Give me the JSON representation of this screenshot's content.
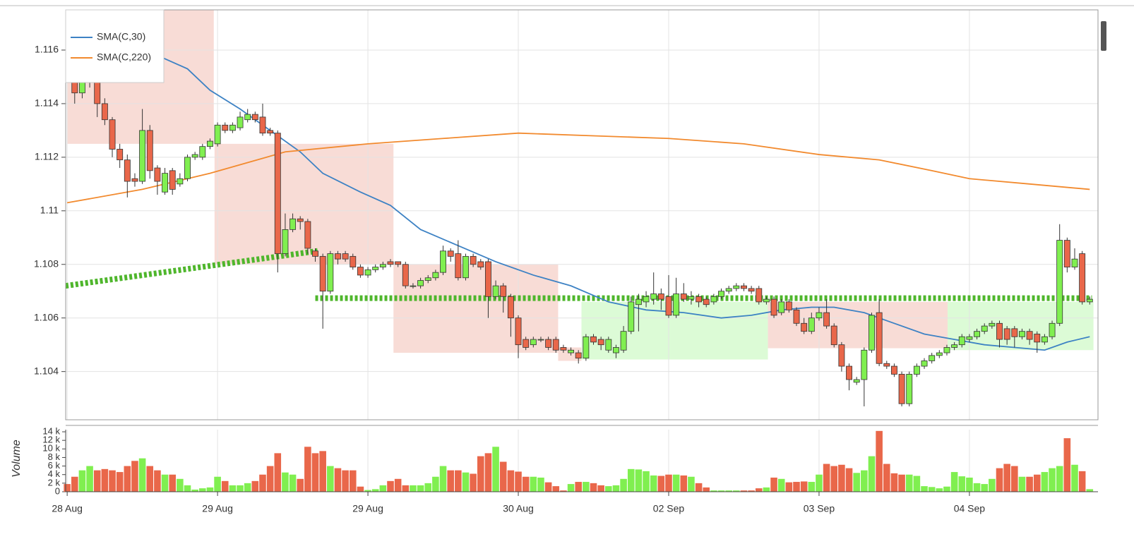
{
  "chart_data": [
    {
      "type": "candlestick",
      "xlim": [
        -0.2,
        137.1
      ],
      "ylim": [
        1.1022,
        1.1175
      ],
      "yticks": [
        1.104,
        1.106,
        1.108,
        1.11,
        1.112,
        1.114,
        1.116
      ],
      "grid": true,
      "up_color": "#80ef50",
      "down_color": "#e9674a",
      "legend": "upper left",
      "open": [
        1.1158,
        1.115,
        1.1144,
        1.1148,
        1.1152,
        1.114,
        1.1134,
        1.1123,
        1.1119,
        1.1112,
        1.1111,
        1.113,
        1.1116,
        1.1107,
        1.1115,
        1.111,
        1.1112,
        1.112,
        1.112,
        1.1124,
        1.1125,
        1.1132,
        1.113,
        1.1131,
        1.1134,
        1.1136,
        1.1135,
        1.113,
        1.1129,
        1.1084,
        1.1093,
        1.1097,
        1.1096,
        1.1085,
        1.1083,
        1.107,
        1.1084,
        1.1084,
        1.1083,
        1.1079,
        1.1076,
        1.1078,
        1.1079,
        1.1081,
        1.1081,
        1.108,
        1.1072,
        1.1072,
        1.1074,
        1.1075,
        1.1077,
        1.1085,
        1.1084,
        1.1075,
        1.1083,
        1.1081,
        1.1081,
        1.1068,
        1.1072,
        1.1068,
        1.106,
        1.1052,
        1.105,
        1.1052,
        1.1052,
        1.1052,
        1.1049,
        1.1047,
        1.1047,
        1.1045,
        1.1053,
        1.1052,
        1.1048,
        1.1047,
        1.1048,
        1.1055,
        1.1065,
        1.1066,
        1.1067,
        1.1069,
        1.1068,
        1.1061,
        1.1069,
        1.1067,
        1.1068,
        1.1067,
        1.1066,
        1.1068,
        1.107,
        1.1071,
        1.1072,
        1.1071,
        1.1071,
        1.1066,
        1.1067,
        1.1062,
        1.1066,
        1.1063,
        1.1058,
        1.1055,
        1.106,
        1.1062,
        1.1057,
        1.105,
        1.1042,
        1.1036,
        1.1037,
        1.1048,
        1.1062,
        1.1043,
        1.1042,
        1.1039,
        1.1028,
        1.1039,
        1.1042,
        1.1044,
        1.1046,
        1.1047,
        1.1049,
        1.105,
        1.1052,
        1.1053,
        1.1055,
        1.1057,
        1.1058,
        1.1056,
        1.1056,
        1.1053,
        1.1055,
        1.1054,
        1.1051,
        1.1053,
        1.1058,
        1.1089,
        1.1079,
        1.1084,
        1.1066
      ],
      "high": [
        1.1162,
        1.1152,
        1.115,
        1.1158,
        1.1154,
        1.1142,
        1.1135,
        1.1125,
        1.1121,
        1.1114,
        1.1138,
        1.1132,
        1.1117,
        1.1116,
        1.1116,
        1.1114,
        1.1121,
        1.1122,
        1.1125,
        1.1127,
        1.1133,
        1.1133,
        1.1133,
        1.1137,
        1.1138,
        1.1137,
        1.114,
        1.1131,
        1.113,
        1.1099,
        1.1099,
        1.1098,
        1.1097,
        1.1086,
        1.1084,
        1.1085,
        1.1085,
        1.1085,
        1.1084,
        1.108,
        1.1079,
        1.108,
        1.1081,
        1.1082,
        1.1081,
        1.1081,
        1.1073,
        1.1075,
        1.1076,
        1.1078,
        1.1087,
        1.1086,
        1.1089,
        1.1084,
        1.1084,
        1.1082,
        1.1082,
        1.1074,
        1.1073,
        1.1069,
        1.1061,
        1.1053,
        1.1053,
        1.1053,
        1.1053,
        1.1053,
        1.105,
        1.1049,
        1.1048,
        1.1054,
        1.1054,
        1.1053,
        1.1053,
        1.105,
        1.1057,
        1.1068,
        1.1069,
        1.107,
        1.1077,
        1.1071,
        1.1076,
        1.1075,
        1.1073,
        1.107,
        1.1069,
        1.1068,
        1.1069,
        1.1071,
        1.1072,
        1.1073,
        1.1073,
        1.1072,
        1.1072,
        1.1068,
        1.1068,
        1.1067,
        1.1067,
        1.1064,
        1.106,
        1.1062,
        1.1064,
        1.1067,
        1.1058,
        1.1051,
        1.1043,
        1.1038,
        1.1049,
        1.1062,
        1.1067,
        1.1044,
        1.1043,
        1.104,
        1.104,
        1.1043,
        1.1045,
        1.1047,
        1.1048,
        1.105,
        1.1051,
        1.1054,
        1.1054,
        1.1056,
        1.1058,
        1.1059,
        1.1059,
        1.1057,
        1.1057,
        1.1056,
        1.1056,
        1.1055,
        1.1054,
        1.1059,
        1.1095,
        1.109,
        1.1086,
        1.1085,
        1.1068
      ],
      "low": [
        1.1148,
        1.114,
        1.1142,
        1.1146,
        1.1135,
        1.1132,
        1.112,
        1.1116,
        1.1105,
        1.1109,
        1.111,
        1.1112,
        1.1106,
        1.1106,
        1.1106,
        1.1109,
        1.1111,
        1.1119,
        1.1119,
        1.1123,
        1.1124,
        1.1129,
        1.1129,
        1.113,
        1.1133,
        1.1133,
        1.1128,
        1.1128,
        1.1077,
        1.1083,
        1.1092,
        1.1093,
        1.1084,
        1.1081,
        1.1056,
        1.1069,
        1.108,
        1.1081,
        1.1078,
        1.1075,
        1.1075,
        1.1077,
        1.1078,
        1.1079,
        1.1079,
        1.1071,
        1.1071,
        1.1071,
        1.1073,
        1.1074,
        1.1076,
        1.1081,
        1.1074,
        1.1074,
        1.1079,
        1.1078,
        1.106,
        1.1067,
        1.1062,
        1.1053,
        1.1045,
        1.1048,
        1.1049,
        1.1051,
        1.1048,
        1.1047,
        1.1047,
        1.1046,
        1.1043,
        1.1044,
        1.105,
        1.1048,
        1.1047,
        1.1045,
        1.1047,
        1.1054,
        1.1055,
        1.1064,
        1.1065,
        1.1063,
        1.106,
        1.106,
        1.1066,
        1.1065,
        1.1064,
        1.1064,
        1.1065,
        1.1067,
        1.1069,
        1.107,
        1.107,
        1.1069,
        1.1065,
        1.1065,
        1.106,
        1.1061,
        1.1062,
        1.1057,
        1.1054,
        1.1054,
        1.1059,
        1.1056,
        1.1049,
        1.104,
        1.1033,
        1.1035,
        1.1027,
        1.1047,
        1.1042,
        1.1041,
        1.1038,
        1.1027,
        1.1027,
        1.1038,
        1.1041,
        1.1043,
        1.1045,
        1.1046,
        1.1048,
        1.1049,
        1.1051,
        1.1052,
        1.1054,
        1.1056,
        1.1049,
        1.105,
        1.1049,
        1.1052,
        1.105,
        1.1047,
        1.105,
        1.1052,
        1.1057,
        1.1077,
        1.1078,
        1.1065,
        1.1065
      ],
      "close": [
        1.1152,
        1.1144,
        1.1148,
        1.1155,
        1.114,
        1.1134,
        1.1123,
        1.1119,
        1.1111,
        1.1111,
        1.113,
        1.1115,
        1.1111,
        1.1114,
        1.1108,
        1.1112,
        1.112,
        1.1121,
        1.1124,
        1.1126,
        1.1132,
        1.113,
        1.1132,
        1.1135,
        1.1136,
        1.1134,
        1.1129,
        1.1129,
        1.1084,
        1.1093,
        1.1097,
        1.1096,
        1.1086,
        1.1083,
        1.107,
        1.1084,
        1.1082,
        1.1082,
        1.1079,
        1.1076,
        1.1078,
        1.1079,
        1.108,
        1.108,
        1.108,
        1.1072,
        1.1072,
        1.1074,
        1.1075,
        1.1077,
        1.1085,
        1.1083,
        1.1075,
        1.1083,
        1.108,
        1.1079,
        1.1068,
        1.1072,
        1.1068,
        1.106,
        1.105,
        1.1049,
        1.1052,
        1.1052,
        1.1049,
        1.1048,
        1.1048,
        1.1048,
        1.1045,
        1.1053,
        1.1051,
        1.105,
        1.1052,
        1.1049,
        1.1055,
        1.1066,
        1.1067,
        1.1068,
        1.1069,
        1.1067,
        1.1061,
        1.1069,
        1.1067,
        1.1068,
        1.1066,
        1.1065,
        1.1068,
        1.107,
        1.1071,
        1.1072,
        1.1071,
        1.107,
        1.1066,
        1.1067,
        1.1061,
        1.1066,
        1.1063,
        1.1058,
        1.1055,
        1.106,
        1.1062,
        1.1057,
        1.105,
        1.1042,
        1.1037,
        1.1037,
        1.1048,
        1.1061,
        1.1043,
        1.1042,
        1.1039,
        1.1028,
        1.1039,
        1.1042,
        1.1044,
        1.1046,
        1.1047,
        1.1049,
        1.105,
        1.1053,
        1.1053,
        1.1055,
        1.1057,
        1.1058,
        1.1052,
        1.1052,
        1.1053,
        1.1055,
        1.1052,
        1.1051,
        1.1053,
        1.1058,
        1.1089,
        1.1079,
        1.1082,
        1.1066,
        1.1067
      ],
      "series": [
        {
          "name": "SMA(C,30)",
          "color": "#3d82c4",
          "x": [
            12,
            16,
            19,
            23,
            27,
            31,
            34,
            39,
            43,
            47,
            52,
            57,
            62,
            67,
            72,
            77,
            82,
            87,
            91,
            95,
            99,
            102,
            106,
            110,
            114,
            118,
            122,
            126,
            130,
            133,
            136
          ],
          "values": [
            1.1158,
            1.1153,
            1.1145,
            1.1138,
            1.113,
            1.1122,
            1.1114,
            1.1107,
            1.1102,
            1.1093,
            1.1087,
            1.1081,
            1.1076,
            1.1072,
            1.1066,
            1.1063,
            1.1062,
            1.106,
            1.1061,
            1.1063,
            1.1064,
            1.1064,
            1.1062,
            1.1058,
            1.1054,
            1.1052,
            1.105,
            1.1049,
            1.1048,
            1.1051,
            1.1053
          ]
        },
        {
          "name": "SMA(C,220)",
          "color": "#f28a2e",
          "x": [
            0,
            10,
            19,
            29,
            40,
            50,
            60,
            70,
            80,
            90,
            100,
            108,
            115,
            120,
            128,
            136
          ],
          "values": [
            1.1103,
            1.1108,
            1.1114,
            1.1122,
            1.1125,
            1.1127,
            1.1129,
            1.1128,
            1.1127,
            1.1125,
            1.1121,
            1.1119,
            1.1115,
            1.1112,
            1.111,
            1.1108
          ]
        }
      ],
      "zones": [
        {
          "x": [
            0,
            19.5
          ],
          "y": [
            1.1125,
            1.1175
          ],
          "color": "#f8dcd6"
        },
        {
          "x": [
            19.6,
            43.4
          ],
          "y": [
            1.108,
            1.1125
          ],
          "color": "#f8dcd6"
        },
        {
          "x": [
            43.4,
            65.3
          ],
          "y": [
            1.1047,
            1.108
          ],
          "color": "#f8dcd6"
        },
        {
          "x": [
            65.3,
            68.4
          ],
          "y": [
            1.1044,
            1.1049
          ],
          "color": "#f8dcd6"
        },
        {
          "x": [
            68.4,
            93.2
          ],
          "y": [
            1.10445,
            1.1066
          ],
          "color": "#dcfbd6"
        },
        {
          "x": [
            93.2,
            117.1
          ],
          "y": [
            1.10487,
            1.1066
          ],
          "color": "#f8dcd6"
        },
        {
          "x": [
            117.1,
            136.5
          ],
          "y": [
            1.1048,
            1.1066
          ],
          "color": "#dcfbd6"
        }
      ],
      "trend_color": "#4fb62c",
      "trend_lines": [
        {
          "x": [
            -0.2,
            33.3
          ],
          "values": [
            1.1072,
            1.1085
          ]
        },
        {
          "x": [
            33,
            136.3
          ],
          "values": [
            1.10674,
            1.10674
          ]
        }
      ]
    },
    {
      "type": "bar",
      "y_label": "Volume",
      "xlim": [
        -0.2,
        137.1
      ],
      "ylim": [
        0,
        14500
      ],
      "yticks": [
        0,
        {
          "value": 2000,
          "label": "2 k"
        },
        {
          "value": 4000,
          "label": "4 k"
        },
        {
          "value": 6000,
          "label": "6 k"
        },
        {
          "value": 8000,
          "label": "8 k"
        },
        {
          "value": 10000,
          "label": "10 k"
        },
        {
          "value": 12000,
          "label": "12 k"
        },
        {
          "value": 14000,
          "label": "14 k"
        }
      ],
      "xticks": [
        {
          "value": 0,
          "label": "28 Aug"
        },
        {
          "value": 20,
          "label": "29 Aug"
        },
        {
          "value": 40,
          "label": "29 Aug"
        },
        {
          "value": 60,
          "label": "30 Aug"
        },
        {
          "value": 80,
          "label": "02 Sep"
        },
        {
          "value": 100,
          "label": "03 Sep"
        },
        {
          "value": 120,
          "label": "04 Sep"
        }
      ],
      "values": [
        1800,
        3500,
        5000,
        6000,
        5000,
        5300,
        5000,
        4600,
        6000,
        7200,
        7800,
        6000,
        5000,
        4000,
        4000,
        3000,
        1500,
        500,
        800,
        1000,
        3500,
        2500,
        1500,
        1500,
        2000,
        2500,
        4000,
        6000,
        9000,
        4500,
        4000,
        3000,
        10500,
        9000,
        9500,
        6000,
        5500,
        5000,
        5000,
        1200,
        400,
        600,
        1500,
        2500,
        3000,
        1500,
        1500,
        1500,
        2000,
        3500,
        6000,
        5000,
        5000,
        4500,
        4200,
        8300,
        9000,
        10500,
        7000,
        5000,
        4700,
        3500,
        3500,
        3300,
        2200,
        1300,
        300,
        1800,
        2300,
        2300,
        2000,
        1500,
        1300,
        1500,
        3000,
        5300,
        5200,
        4800,
        3800,
        3700,
        4000,
        4000,
        3800,
        3500,
        2000,
        1000,
        300,
        300,
        300,
        300,
        300,
        300,
        800,
        1000,
        3300,
        3000,
        2200,
        2300,
        2400,
        2300,
        4000,
        6500,
        6000,
        6300,
        5500,
        4400,
        5000,
        8300,
        14200,
        6500,
        4300,
        4000,
        4000,
        3700,
        1300,
        1100,
        800,
        1200,
        4600,
        3600,
        3300,
        2000,
        1800,
        3000,
        5500,
        6500,
        6000,
        3500,
        3500,
        4000,
        4600,
        5500,
        6000,
        12500,
        6300,
        4800,
        600
      ]
    }
  ]
}
